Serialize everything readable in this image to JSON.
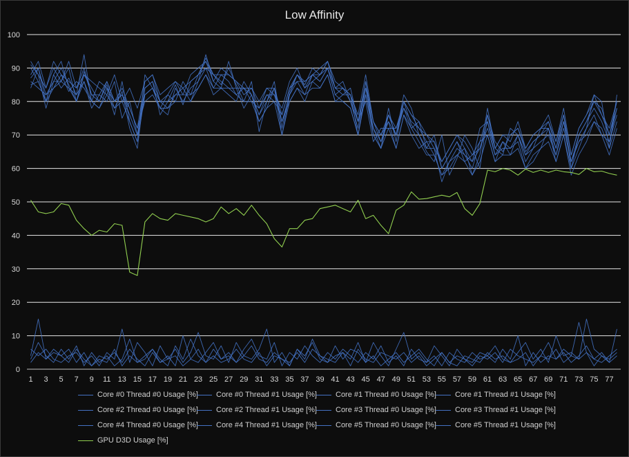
{
  "chart_data": {
    "type": "line",
    "title": "Low Affinity",
    "xlabel": "",
    "ylabel": "",
    "ylim": [
      0,
      100
    ],
    "yticks": [
      0,
      10,
      20,
      30,
      40,
      50,
      60,
      70,
      80,
      90,
      100
    ],
    "xticks": [
      1,
      3,
      5,
      7,
      9,
      11,
      13,
      15,
      17,
      19,
      21,
      23,
      25,
      27,
      29,
      31,
      33,
      35,
      37,
      39,
      41,
      43,
      45,
      47,
      49,
      51,
      53,
      55,
      57,
      59,
      61,
      63,
      65,
      67,
      69,
      71,
      73,
      75,
      77
    ],
    "x_count": 78,
    "grid": true,
    "legend_position": "bottom",
    "series": [
      {
        "name": "Core #0 Thread #0 Usage [%]",
        "color": "#4472c4",
        "values": [
          91,
          88,
          78,
          86,
          90,
          85,
          80,
          89,
          82,
          80,
          85,
          78,
          83,
          72,
          66,
          84,
          86,
          76,
          80,
          85,
          79,
          86,
          88,
          93,
          88,
          85,
          90,
          85,
          80,
          86,
          71,
          80,
          86,
          72,
          83,
          88,
          85,
          90,
          88,
          92,
          84,
          86,
          80,
          72,
          86,
          70,
          66,
          78,
          68,
          80,
          73,
          70,
          65,
          62,
          70,
          58,
          63,
          70,
          66,
          60,
          76,
          68,
          65,
          70,
          72,
          65,
          68,
          70,
          74,
          66,
          76,
          60,
          70,
          74,
          80,
          78,
          70,
          78
        ]
      },
      {
        "name": "Core #0 Thread #1 Usage [%]",
        "color": "#4472c4",
        "values": [
          84,
          90,
          80,
          88,
          84,
          87,
          82,
          86,
          78,
          82,
          80,
          86,
          75,
          80,
          70,
          82,
          84,
          80,
          78,
          82,
          84,
          80,
          86,
          90,
          84,
          88,
          86,
          82,
          84,
          80,
          78,
          82,
          80,
          76,
          84,
          86,
          82,
          88,
          86,
          90,
          82,
          80,
          78,
          70,
          82,
          72,
          68,
          74,
          66,
          76,
          70,
          66,
          68,
          64,
          58,
          62,
          66,
          64,
          60,
          68,
          70,
          62,
          68,
          64,
          70,
          62,
          66,
          68,
          70,
          64,
          72,
          62,
          68,
          70,
          74,
          72,
          66,
          74
        ]
      },
      {
        "name": "Core #1 Thread #0 Usage [%]",
        "color": "#4472c4",
        "values": [
          88,
          92,
          84,
          90,
          86,
          92,
          84,
          88,
          86,
          84,
          82,
          88,
          80,
          84,
          78,
          86,
          88,
          82,
          84,
          86,
          82,
          88,
          90,
          92,
          86,
          90,
          88,
          86,
          82,
          84,
          80,
          84,
          82,
          78,
          86,
          90,
          84,
          88,
          90,
          92,
          86,
          84,
          82,
          76,
          88,
          74,
          70,
          76,
          70,
          80,
          76,
          72,
          70,
          66,
          62,
          66,
          70,
          66,
          62,
          72,
          74,
          66,
          70,
          68,
          74,
          66,
          70,
          72,
          76,
          68,
          78,
          64,
          72,
          76,
          82,
          76,
          70,
          80
        ]
      },
      {
        "name": "Core #1 Thread #1 Usage [%]",
        "color": "#4472c4",
        "values": [
          86,
          84,
          82,
          84,
          88,
          83,
          86,
          84,
          80,
          86,
          84,
          80,
          82,
          78,
          72,
          80,
          82,
          78,
          82,
          80,
          86,
          82,
          84,
          88,
          82,
          84,
          82,
          80,
          86,
          82,
          76,
          80,
          84,
          74,
          80,
          84,
          80,
          86,
          84,
          88,
          80,
          82,
          84,
          74,
          80,
          68,
          72,
          72,
          72,
          78,
          72,
          74,
          66,
          70,
          60,
          64,
          68,
          62,
          64,
          66,
          72,
          64,
          66,
          66,
          68,
          60,
          64,
          66,
          72,
          62,
          70,
          60,
          66,
          72,
          76,
          70,
          68,
          76
        ]
      },
      {
        "name": "Core #2 Thread #0 Usage [%]",
        "color": "#4472c4",
        "values": [
          90,
          86,
          80,
          88,
          92,
          84,
          82,
          94,
          80,
          78,
          84,
          76,
          86,
          74,
          68,
          88,
          84,
          78,
          76,
          84,
          80,
          84,
          86,
          94,
          86,
          84,
          92,
          84,
          78,
          82,
          74,
          78,
          84,
          70,
          82,
          86,
          86,
          88,
          86,
          90,
          84,
          82,
          82,
          70,
          84,
          72,
          66,
          76,
          70,
          82,
          78,
          70,
          66,
          66,
          56,
          62,
          64,
          66,
          58,
          64,
          78,
          66,
          64,
          72,
          70,
          64,
          66,
          72,
          72,
          64,
          74,
          62,
          68,
          72,
          82,
          80,
          66,
          82
        ]
      },
      {
        "name": "Core #2 Thread #1 Usage [%]",
        "color": "#4472c4",
        "values": [
          87,
          90,
          82,
          86,
          86,
          90,
          80,
          88,
          84,
          80,
          86,
          80,
          82,
          76,
          70,
          84,
          86,
          80,
          80,
          82,
          82,
          82,
          88,
          90,
          88,
          86,
          84,
          84,
          84,
          82,
          76,
          82,
          82,
          74,
          82,
          88,
          84,
          86,
          88,
          90,
          82,
          84,
          80,
          74,
          84,
          74,
          70,
          74,
          70,
          78,
          74,
          72,
          68,
          68,
          60,
          64,
          68,
          64,
          62,
          66,
          74,
          64,
          68,
          66,
          70,
          64,
          68,
          70,
          72,
          66,
          74,
          62,
          70,
          74,
          78,
          74,
          68,
          78
        ]
      },
      {
        "name": "Core #3 Thread #0 Usage [%]",
        "color": "#4472c4",
        "values": [
          92,
          88,
          84,
          92,
          88,
          86,
          84,
          90,
          82,
          82,
          86,
          80,
          84,
          78,
          72,
          86,
          88,
          80,
          82,
          86,
          84,
          86,
          88,
          92,
          88,
          88,
          88,
          86,
          84,
          84,
          78,
          84,
          84,
          76,
          84,
          88,
          86,
          88,
          88,
          92,
          84,
          84,
          82,
          74,
          86,
          74,
          68,
          76,
          72,
          80,
          76,
          74,
          70,
          68,
          62,
          66,
          70,
          68,
          64,
          68,
          76,
          66,
          70,
          70,
          72,
          66,
          70,
          72,
          74,
          68,
          76,
          64,
          72,
          76,
          80,
          76,
          72,
          80
        ]
      },
      {
        "name": "Core #3 Thread #1 Usage [%]",
        "color": "#4472c4",
        "values": [
          85,
          86,
          80,
          84,
          86,
          84,
          80,
          86,
          80,
          78,
          82,
          78,
          80,
          74,
          68,
          82,
          84,
          78,
          78,
          80,
          80,
          80,
          84,
          88,
          84,
          84,
          84,
          82,
          80,
          80,
          74,
          78,
          80,
          70,
          80,
          84,
          82,
          84,
          84,
          88,
          80,
          80,
          78,
          70,
          82,
          70,
          66,
          72,
          66,
          76,
          72,
          68,
          64,
          64,
          58,
          60,
          64,
          62,
          58,
          62,
          70,
          62,
          64,
          64,
          66,
          60,
          62,
          66,
          68,
          62,
          70,
          58,
          64,
          68,
          74,
          70,
          64,
          72
        ]
      },
      {
        "name": "Core #4 Thread #0 Usage [%]",
        "color": "#4472c4",
        "values": [
          4,
          15,
          3,
          5,
          4,
          6,
          2,
          5,
          1,
          3,
          2,
          6,
          1,
          4,
          2,
          3,
          6,
          2,
          4,
          1,
          10,
          3,
          2,
          5,
          8,
          3,
          4,
          2,
          6,
          9,
          4,
          3,
          8,
          1,
          5,
          3,
          7,
          4,
          2,
          5,
          3,
          6,
          4,
          2,
          5,
          3,
          7,
          2,
          4,
          1,
          6,
          3,
          2,
          4,
          1,
          5,
          3,
          2,
          5,
          3,
          4,
          2,
          6,
          3,
          10,
          1,
          5,
          2,
          4,
          3,
          6,
          4,
          14,
          5,
          3,
          2,
          4,
          6
        ]
      },
      {
        "name": "Core #4 Thread #1 Usage [%]",
        "color": "#4472c4",
        "values": [
          6,
          4,
          6,
          3,
          2,
          4,
          5,
          2,
          4,
          1,
          5,
          3,
          12,
          2,
          8,
          5,
          1,
          7,
          3,
          6,
          2,
          5,
          11,
          4,
          3,
          7,
          2,
          8,
          4,
          3,
          6,
          12,
          2,
          5,
          1,
          6,
          3,
          9,
          4,
          2,
          7,
          3,
          6,
          5,
          2,
          8,
          4,
          1,
          6,
          11,
          3,
          5,
          2,
          7,
          4,
          1,
          6,
          3,
          2,
          5,
          4,
          7,
          3,
          2,
          5,
          8,
          3,
          6,
          2,
          10,
          4,
          5,
          3,
          15,
          6,
          4,
          2,
          12
        ]
      },
      {
        "name": "Core #5 Thread #0 Usage [%]",
        "color": "#4472c4",
        "values": [
          3,
          8,
          4,
          2,
          6,
          3,
          7,
          1,
          5,
          2,
          4,
          1,
          3,
          9,
          2,
          4,
          6,
          3,
          1,
          7,
          3,
          9,
          4,
          2,
          6,
          3,
          5,
          2,
          4,
          7,
          3,
          2,
          5,
          3,
          1,
          6,
          4,
          8,
          3,
          2,
          4,
          5,
          3,
          8,
          2,
          4,
          1,
          3,
          5,
          2,
          4,
          6,
          3,
          1,
          5,
          2,
          4,
          3,
          1,
          4,
          3,
          5,
          2,
          6,
          4,
          3,
          2,
          4,
          8,
          3,
          5,
          2,
          4,
          7,
          3,
          5,
          2,
          4
        ]
      },
      {
        "name": "Core #5 Thread #1 Usage [%]",
        "color": "#4472c4",
        "values": [
          2,
          5,
          3,
          6,
          4,
          2,
          6,
          3,
          1,
          4,
          3,
          5,
          2,
          6,
          3,
          1,
          5,
          2,
          3,
          4,
          1,
          3,
          6,
          2,
          4,
          2,
          3,
          6,
          3,
          2,
          5,
          1,
          4,
          3,
          2,
          5,
          2,
          6,
          4,
          3,
          2,
          5,
          1,
          6,
          3,
          2,
          5,
          4,
          3,
          5,
          2,
          4,
          1,
          3,
          5,
          2,
          1,
          4,
          3,
          2,
          5,
          3,
          4,
          2,
          3,
          5,
          1,
          4,
          3,
          6,
          2,
          4,
          3,
          5,
          1,
          4,
          3,
          5
        ]
      },
      {
        "name": "GPU D3D Usage [%]",
        "color": "#92d050",
        "values": [
          50.5,
          47,
          46.5,
          47,
          49.5,
          49,
          44.5,
          42,
          40,
          41.5,
          41,
          43.5,
          43,
          29,
          28,
          44,
          46.5,
          45,
          44.5,
          46.5,
          46,
          45.5,
          45,
          44,
          45,
          48.5,
          46.5,
          48,
          46,
          49,
          46,
          43.5,
          39,
          36.5,
          42,
          42,
          44.5,
          45,
          48,
          48.5,
          49,
          48,
          47,
          50.5,
          45,
          46,
          43,
          40.5,
          47.5,
          49,
          53,
          50.8,
          51,
          51.5,
          52,
          51.5,
          52.8,
          48,
          46,
          49.5,
          59.5,
          59,
          60,
          59.5,
          58,
          59.8,
          58.8,
          59.5,
          58.8,
          59.5,
          59,
          58.8,
          58.2,
          60,
          59,
          59.2,
          58.5,
          58
        ]
      }
    ]
  }
}
